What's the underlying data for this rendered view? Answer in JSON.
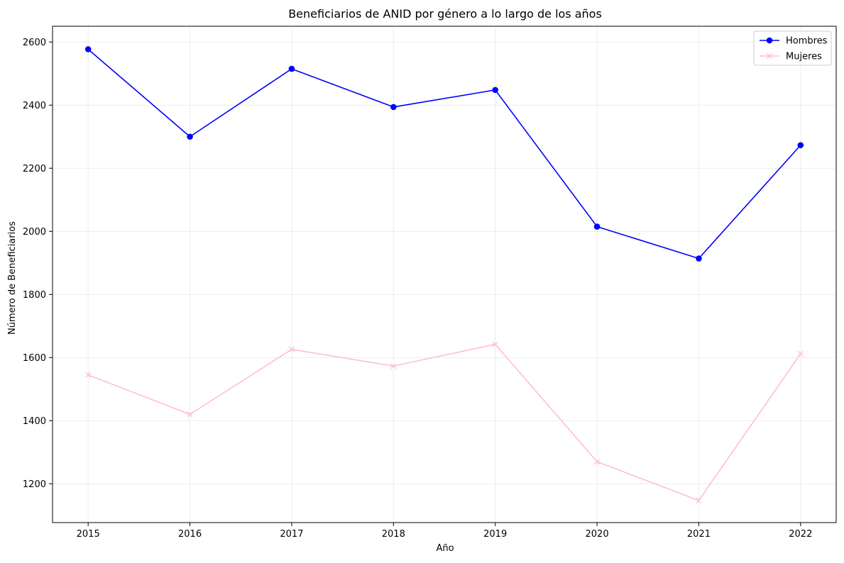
{
  "chart_data": {
    "type": "line",
    "title": "Beneficiarios de ANID por género a lo largo de los años",
    "xlabel": "Año",
    "ylabel": "Número de Beneficiarios",
    "x": [
      2015,
      2016,
      2017,
      2018,
      2019,
      2020,
      2021,
      2022
    ],
    "x_tick_labels": [
      "2015",
      "2016",
      "2017",
      "2018",
      "2019",
      "2020",
      "2021",
      "2022"
    ],
    "y_ticks": [
      1200,
      1400,
      1600,
      1800,
      2000,
      2200,
      2400,
      2600
    ],
    "y_tick_labels": [
      "1200",
      "1400",
      "1600",
      "1800",
      "2000",
      "2200",
      "2400",
      "2600"
    ],
    "xlim": [
      2014.65,
      2022.35
    ],
    "ylim": [
      1077,
      2650
    ],
    "grid": true,
    "legend_position": "top-right",
    "series": [
      {
        "name": "Hombres",
        "color": "#0000ff",
        "marker": "circle",
        "values": [
          2577,
          2300,
          2515,
          2394,
          2448,
          2015,
          1914,
          2273
        ]
      },
      {
        "name": "Mujeres",
        "color": "#ffc0cb",
        "marker": "x",
        "values": [
          1545,
          1420,
          1626,
          1573,
          1642,
          1270,
          1147,
          1612
        ]
      }
    ]
  }
}
